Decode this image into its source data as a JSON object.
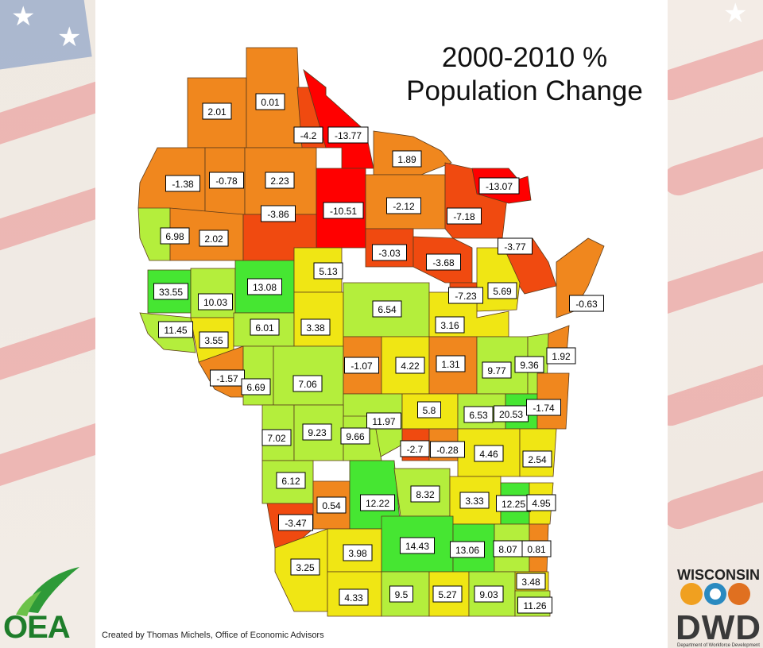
{
  "title": "2000-2010 %\nPopulation Change",
  "credit": "Created by Thomas Michels, Office of Economic Advisors",
  "logos": {
    "left": "OEA",
    "right_top": "WISCONSIN",
    "right_main": "DWD",
    "right_sub": "Department of Workforce Development"
  },
  "color_scale": {
    "dark_red": "#ff0000",
    "red_orange": "#f04a10",
    "orange": "#f0871e",
    "yellow": "#f0e614",
    "light_green": "#b4ee3c",
    "green": "#46e632"
  },
  "counties": [
    {
      "label": "2.01"
    },
    {
      "label": "0.01"
    },
    {
      "label": "-4.2"
    },
    {
      "label": "-13.77"
    },
    {
      "label": "1.89"
    },
    {
      "label": "-1.38"
    },
    {
      "label": "-0.78"
    },
    {
      "label": "2.23"
    },
    {
      "label": "-10.51"
    },
    {
      "label": "-2.12"
    },
    {
      "label": "-7.18"
    },
    {
      "label": "-13.07"
    },
    {
      "label": "6.98"
    },
    {
      "label": "2.02"
    },
    {
      "label": "-3.86"
    },
    {
      "label": "-3.03"
    },
    {
      "label": "-3.68"
    },
    {
      "label": "-3.77"
    },
    {
      "label": "33.55"
    },
    {
      "label": "10.03"
    },
    {
      "label": "13.08"
    },
    {
      "label": "5.13"
    },
    {
      "label": "-7.23"
    },
    {
      "label": "5.69"
    },
    {
      "label": "-0.63"
    },
    {
      "label": "11.45"
    },
    {
      "label": "3.55"
    },
    {
      "label": "6.01"
    },
    {
      "label": "3.38"
    },
    {
      "label": "6.54"
    },
    {
      "label": "3.16"
    },
    {
      "label": "1.92"
    },
    {
      "label": "-1.57"
    },
    {
      "label": "6.69"
    },
    {
      "label": "7.06"
    },
    {
      "label": "-1.07"
    },
    {
      "label": "4.22"
    },
    {
      "label": "1.31"
    },
    {
      "label": "9.77"
    },
    {
      "label": "9.36"
    },
    {
      "label": "11.97"
    },
    {
      "label": "5.8"
    },
    {
      "label": "6.53"
    },
    {
      "label": "20.53"
    },
    {
      "label": "-1.74"
    },
    {
      "label": "7.02"
    },
    {
      "label": "9.23"
    },
    {
      "label": "9.66"
    },
    {
      "label": "-2.7"
    },
    {
      "label": "-0.28"
    },
    {
      "label": "4.46"
    },
    {
      "label": "2.54"
    },
    {
      "label": "6.12"
    },
    {
      "label": "0.54"
    },
    {
      "label": "12.22"
    },
    {
      "label": "8.32"
    },
    {
      "label": "3.33"
    },
    {
      "label": "12.25"
    },
    {
      "label": "4.95"
    },
    {
      "label": "-3.47"
    },
    {
      "label": "14.43"
    },
    {
      "label": "13.06"
    },
    {
      "label": "8.07"
    },
    {
      "label": "0.81"
    },
    {
      "label": "3.25"
    },
    {
      "label": "3.98"
    },
    {
      "label": "3.48"
    },
    {
      "label": "4.33"
    },
    {
      "label": "9.5"
    },
    {
      "label": "5.27"
    },
    {
      "label": "9.03"
    },
    {
      "label": "11.26"
    }
  ]
}
